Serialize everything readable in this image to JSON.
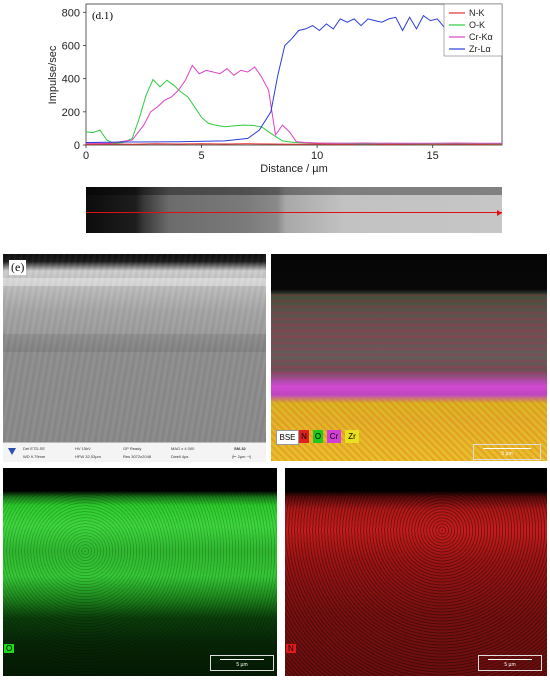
{
  "chart_data": {
    "type": "line",
    "panel_label": "(d.1)",
    "xlabel": "Distance / µm",
    "ylabel": "Impulse/sec",
    "xlim": [
      0,
      18
    ],
    "ylim": [
      0,
      850
    ],
    "xticks": [
      0,
      5,
      10,
      15
    ],
    "yticks": [
      0,
      200,
      400,
      600,
      800
    ],
    "legend_position": "top-right",
    "series": [
      {
        "name": "N-K",
        "color": "#e8302a",
        "x": [
          0,
          1,
          2,
          3,
          4,
          5,
          6,
          7,
          8,
          9,
          10,
          11,
          12,
          13,
          14,
          15,
          16,
          17,
          18
        ],
        "y": [
          5,
          6,
          5,
          7,
          6,
          8,
          6,
          7,
          6,
          5,
          6,
          5,
          6,
          5,
          6,
          5,
          6,
          5,
          5
        ]
      },
      {
        "name": "O-K",
        "color": "#2ecc40",
        "x": [
          0,
          0.3,
          0.6,
          0.9,
          1.2,
          1.6,
          2.0,
          2.3,
          2.6,
          2.9,
          3.2,
          3.5,
          3.8,
          4.1,
          4.4,
          4.7,
          5.0,
          5.3,
          5.6,
          6.0,
          6.4,
          6.8,
          7.2,
          7.6,
          8.0,
          8.5,
          9.0,
          10,
          11,
          12,
          13,
          14,
          15,
          16,
          17,
          18
        ],
        "y": [
          80,
          75,
          90,
          30,
          10,
          15,
          40,
          160,
          300,
          395,
          350,
          390,
          360,
          320,
          290,
          230,
          165,
          130,
          120,
          110,
          115,
          120,
          118,
          110,
          70,
          25,
          15,
          12,
          10,
          8,
          10,
          9,
          8,
          10,
          9,
          8
        ]
      },
      {
        "name": "Cr-Kα",
        "color": "#e040c8",
        "x": [
          0,
          1,
          2,
          2.5,
          2.8,
          3.1,
          3.4,
          3.7,
          4.0,
          4.3,
          4.6,
          4.9,
          5.2,
          5.5,
          5.8,
          6.1,
          6.4,
          6.7,
          7.0,
          7.3,
          7.6,
          7.9,
          8.2,
          8.5,
          8.8,
          9.1,
          9.5,
          10,
          11,
          12,
          13,
          14,
          15,
          16,
          17,
          18
        ],
        "y": [
          10,
          10,
          30,
          120,
          200,
          230,
          270,
          290,
          330,
          390,
          480,
          430,
          450,
          440,
          430,
          460,
          420,
          450,
          440,
          470,
          410,
          330,
          60,
          120,
          80,
          20,
          15,
          12,
          10,
          12,
          10,
          11,
          10,
          12,
          10,
          11
        ]
      },
      {
        "name": "Zr-Lα",
        "color": "#2a3ed8",
        "x": [
          0,
          2,
          4,
          6,
          7,
          7.5,
          8.0,
          8.3,
          8.6,
          8.9,
          9.2,
          9.5,
          9.8,
          10.1,
          10.4,
          10.7,
          11.0,
          11.3,
          11.6,
          11.9,
          12.2,
          12.5,
          12.8,
          13.1,
          13.4,
          13.7,
          14.0,
          14.3,
          14.6,
          14.9,
          15.2,
          15.5,
          15.8,
          16.1,
          16.4,
          16.7,
          17.0,
          17.3,
          17.6,
          18
        ],
        "y": [
          15,
          18,
          20,
          25,
          40,
          90,
          200,
          420,
          600,
          640,
          690,
          700,
          720,
          690,
          730,
          700,
          760,
          740,
          760,
          720,
          760,
          750,
          740,
          760,
          770,
          690,
          770,
          700,
          780,
          750,
          760,
          710,
          770,
          740,
          740,
          760,
          720,
          740,
          760,
          750
        ]
      }
    ]
  },
  "panel_e": {
    "label": "(e)",
    "info_bar": {
      "col1a": "Det ETD-SE",
      "col1b": "WD 9.79mm",
      "col2a": "HV 15kV",
      "col2b": "HFW 32.03µm",
      "col3a": "GP Ready",
      "col3b": "Res 3072x2048",
      "col4a": "MAG x 4 000",
      "col4b": "Dwell 4µs",
      "col5a": "SM-32",
      "col5b": "|⊢ 2µm ⊣|"
    }
  },
  "overlay_legend": {
    "bse": "BSE",
    "n": "N",
    "o": "O",
    "cr": "Cr",
    "zr": "Zr",
    "scale": "5 µm",
    "colors": {
      "n": "#e02020",
      "o": "#1ec81e",
      "cr": "#d040d8",
      "zr": "#e8e020"
    }
  },
  "map_o": {
    "label": "O",
    "scale": "5 µm",
    "color": "#1fd81f"
  },
  "map_n": {
    "label": "N",
    "scale": "5 µm",
    "color": "#e01a1a"
  }
}
